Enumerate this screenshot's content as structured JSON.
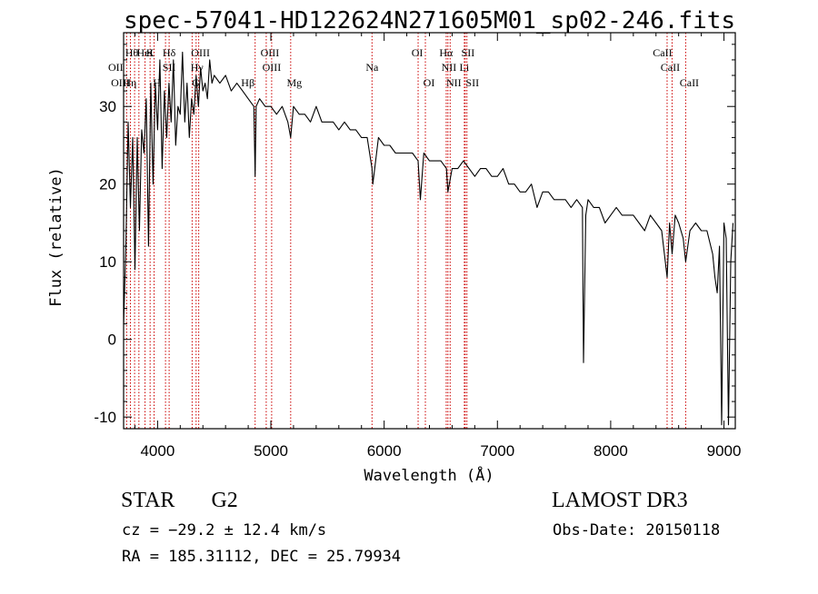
{
  "chart_data": {
    "type": "line",
    "title": "spec-57041-HD122624N271605M01_sp02-246.fits",
    "xlabel": "Wavelength (Å)",
    "ylabel": "Flux (relative)",
    "xlim": [
      3700,
      9100
    ],
    "ylim": [
      -11.5,
      39.5
    ],
    "xticks": [
      4000,
      5000,
      6000,
      7000,
      8000,
      9000
    ],
    "yticks": [
      -10,
      0,
      10,
      20,
      30
    ],
    "grid": false,
    "line_color": "#000000",
    "line_marker_color": "#cc0000",
    "series": [
      {
        "name": "flux",
        "x": [
          3700,
          3720,
          3740,
          3760,
          3780,
          3800,
          3820,
          3840,
          3860,
          3880,
          3900,
          3920,
          3940,
          3960,
          3980,
          4000,
          4020,
          4040,
          4060,
          4080,
          4100,
          4120,
          4140,
          4160,
          4180,
          4200,
          4220,
          4240,
          4260,
          4280,
          4300,
          4320,
          4340,
          4360,
          4380,
          4400,
          4420,
          4440,
          4460,
          4480,
          4500,
          4550,
          4600,
          4650,
          4700,
          4750,
          4800,
          4850,
          4861,
          4870,
          4900,
          4950,
          5000,
          5050,
          5100,
          5150,
          5175,
          5200,
          5250,
          5300,
          5350,
          5400,
          5450,
          5500,
          5550,
          5600,
          5650,
          5700,
          5750,
          5800,
          5850,
          5893,
          5900,
          5950,
          6000,
          6050,
          6100,
          6150,
          6200,
          6250,
          6300,
          6320,
          6350,
          6400,
          6450,
          6500,
          6550,
          6563,
          6600,
          6650,
          6700,
          6750,
          6800,
          6850,
          6900,
          6950,
          7000,
          7050,
          7100,
          7150,
          7200,
          7250,
          7300,
          7350,
          7400,
          7450,
          7500,
          7550,
          7600,
          7650,
          7700,
          7750,
          7760,
          7780,
          7800,
          7850,
          7900,
          7950,
          8000,
          8050,
          8100,
          8150,
          8200,
          8250,
          8300,
          8350,
          8400,
          8450,
          8498,
          8520,
          8542,
          8570,
          8600,
          8620,
          8640,
          8662,
          8700,
          8750,
          8800,
          8850,
          8900,
          8920,
          8940,
          8960,
          8980,
          9000,
          9020,
          9040,
          9060,
          9080
        ],
        "y": [
          2,
          12,
          28,
          17,
          26,
          9,
          26,
          14,
          27,
          24,
          31,
          12,
          33,
          20,
          33,
          27,
          36,
          22,
          32,
          26,
          33,
          28,
          36,
          25,
          30,
          29,
          37,
          28,
          33,
          26,
          31,
          29,
          34,
          30,
          35,
          32,
          33,
          31,
          36,
          33,
          34,
          33,
          34,
          32,
          33,
          32,
          31,
          30,
          21,
          30,
          31,
          30,
          30,
          29,
          30,
          28,
          26,
          30,
          29,
          29,
          28,
          30,
          28,
          28,
          28,
          27,
          28,
          27,
          27,
          26,
          26,
          22,
          20,
          26,
          25,
          25,
          24,
          24,
          24,
          24,
          23,
          18,
          24,
          23,
          23,
          23,
          22,
          19,
          22,
          22,
          23,
          22,
          21,
          22,
          22,
          21,
          21,
          22,
          20,
          20,
          19,
          19,
          20,
          17,
          19,
          19,
          18,
          18,
          18,
          17,
          18,
          17,
          -3,
          16,
          18,
          17,
          17,
          15,
          16,
          17,
          16,
          16,
          16,
          15,
          14,
          16,
          15,
          14,
          8,
          15,
          11,
          16,
          15,
          14,
          13,
          10,
          14,
          15,
          14,
          14,
          11,
          8,
          6,
          12,
          -11,
          15,
          13,
          -11,
          10,
          15
        ]
      }
    ],
    "line_markers": [
      {
        "label": "Hθ",
        "wavelength": 3797
      },
      {
        "label": "OII",
        "wavelength": 3727
      },
      {
        "label": "OIII",
        "wavelength": 3760
      },
      {
        "label": "HeI",
        "wavelength": 3889
      },
      {
        "label": "Hη",
        "wavelength": 3835
      },
      {
        "label": "K",
        "wavelength": 3934
      },
      {
        "label": "SII",
        "wavelength": 4070
      },
      {
        "label": "H",
        "wavelength": 3969
      },
      {
        "label": "Hδ",
        "wavelength": 4102
      },
      {
        "label": "OIII",
        "wavelength": 4363
      },
      {
        "label": "Hγ",
        "wavelength": 4340
      },
      {
        "label": "G",
        "wavelength": 4305
      },
      {
        "label": "Hβ",
        "wavelength": 4861
      },
      {
        "label": "OIII",
        "wavelength": 4959
      },
      {
        "label": "OIII",
        "wavelength": 5007
      },
      {
        "label": "Mg",
        "wavelength": 5175
      },
      {
        "label": "Na",
        "wavelength": 5893
      },
      {
        "label": "OI",
        "wavelength": 6300
      },
      {
        "label": "OI",
        "wavelength": 6364
      },
      {
        "label": "Hα",
        "wavelength": 6563
      },
      {
        "label": "NII",
        "wavelength": 6548
      },
      {
        "label": "NII",
        "wavelength": 6583
      },
      {
        "label": "SII",
        "wavelength": 6716
      },
      {
        "label": "Li",
        "wavelength": 6708
      },
      {
        "label": "SII",
        "wavelength": 6731
      },
      {
        "label": "CaII",
        "wavelength": 8498
      },
      {
        "label": "CaII",
        "wavelength": 8542
      },
      {
        "label": "CaII",
        "wavelength": 8662
      }
    ],
    "annotations": {
      "object_class": "STAR",
      "spectral_type": "G2",
      "survey": "LAMOST DR3",
      "redshift_text": "cz = −29.2 ± 12.4 km/s",
      "obs_date_text": "Obs-Date: 20150118",
      "coords_text": "RA = 185.31112, DEC =  25.79934"
    }
  }
}
